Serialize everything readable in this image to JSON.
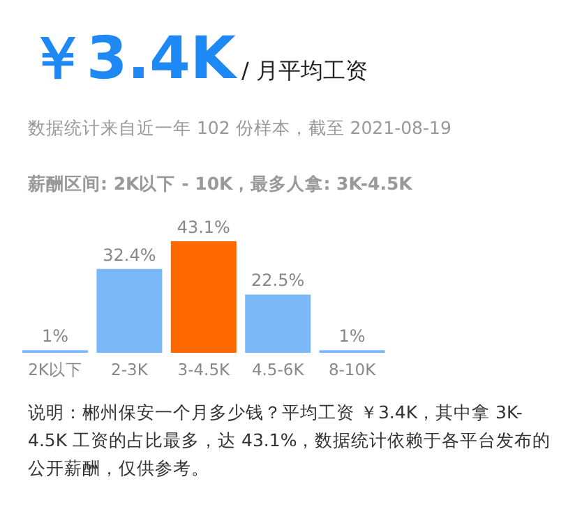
{
  "chart_data": {
    "type": "bar",
    "title": "￥3.4K",
    "subtitle": "/ 月平均工资",
    "annotations": [
      "数据统计来自近一年 102 份样本，截至 2021-08-19",
      "**薪酬区间: 2K以下 - 10K，最多人拿: 3K-4.5K**",
      "说明：郴州保安一个月多少钱？平均工资 ￥3.4K，其中拿 3K-4.5K 工资的占比最多，达 43.1%，数据统计依赖于各平台发布的公开薪酬，仅供参考。"
    ],
    "categories": [
      "2K以下",
      "2-3K",
      "3-4.5K",
      "4.5-6K",
      "8-10K"
    ],
    "values": [
      1,
      32.4,
      43.1,
      22.5,
      1
    ],
    "value_labels": [
      "1%",
      "32.4%",
      "43.1%",
      "22.5%",
      "1%"
    ],
    "colors": [
      "#7ab8f7",
      "#7ab8f7",
      "#ff6a00",
      "#7ab8f7",
      "#7ab8f7"
    ]
  }
}
